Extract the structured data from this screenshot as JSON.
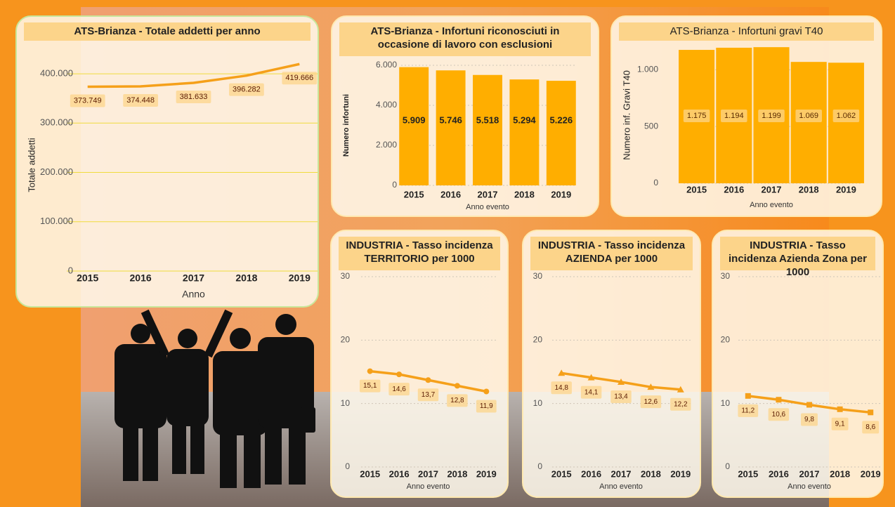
{
  "chart_data": [
    {
      "type": "line",
      "title": "ATS-Brianza - Totale addetti per anno",
      "y_label": "Totale addetti",
      "x_label": "Anno",
      "categories": [
        "2015",
        "2016",
        "2017",
        "2018",
        "2019"
      ],
      "values": [
        373749,
        374448,
        381633,
        396282,
        419666
      ],
      "value_labels": [
        "373.749",
        "374.448",
        "381.633",
        "396.282",
        "419.666"
      ],
      "color": "#f5a01a",
      "ylim": [
        0,
        430000
      ],
      "yticks": [
        0,
        {
          "value": 100000,
          "label": "100.000"
        },
        {
          "value": 200000,
          "label": "200.000"
        },
        {
          "value": 300000,
          "label": "300.000"
        },
        {
          "value": 400000,
          "label": "400.000"
        }
      ],
      "grid": true,
      "grid_color": "#f0dc3c"
    },
    {
      "type": "bar",
      "title": "ATS-Brianza - Infortuni riconosciuti in occasione di lavoro con esclusioni",
      "y_label": "Numero infortuni",
      "x_label": "Anno evento",
      "categories": [
        "2015",
        "2016",
        "2017",
        "2018",
        "2019"
      ],
      "values": [
        5909,
        5746,
        5518,
        5294,
        5226
      ],
      "value_labels": [
        "5.909",
        "5.746",
        "5.518",
        "5.294",
        "5.226"
      ],
      "color": "#ffae00",
      "ylim": [
        0,
        6000
      ],
      "yticks": [
        0,
        {
          "value": 2000,
          "label": "2.000"
        },
        {
          "value": 4000,
          "label": "4.000"
        },
        {
          "value": 6000,
          "label": "6.000"
        }
      ],
      "grid": true,
      "grid_color": "#cfc6b8"
    },
    {
      "type": "bar",
      "title": "ATS-Brianza - Infortuni gravi T40",
      "y_label": "Numero inf. Gravi T40",
      "x_label": "Anno evento",
      "categories": [
        "2015",
        "2016",
        "2017",
        "2018",
        "2019"
      ],
      "values": [
        1175,
        1194,
        1199,
        1069,
        1062
      ],
      "value_labels": [
        "1.175",
        "1.194",
        "1.199",
        "1.069",
        "1.062"
      ],
      "color": "#ffae00",
      "ylim": [
        0,
        1200
      ],
      "yticks": [
        0,
        500,
        {
          "value": 1000,
          "label": "1.000"
        }
      ],
      "grid": true,
      "grid_color": "#cfc6b8"
    },
    {
      "type": "line",
      "title": "INDUSTRIA - Tasso incidenza TERRITORIO per 1000",
      "x_label": "Anno evento",
      "categories": [
        "2015",
        "2016",
        "2017",
        "2018",
        "2019"
      ],
      "values": [
        15.1,
        14.6,
        13.7,
        12.8,
        11.9
      ],
      "value_labels": [
        "15,1",
        "14,6",
        "13,7",
        "12,8",
        "11,9"
      ],
      "color": "#f5a01a",
      "marker": "circle",
      "ylim": [
        0,
        30
      ],
      "yticks": [
        0,
        10,
        20,
        30
      ],
      "grid": true,
      "grid_color": "#cfc6b8"
    },
    {
      "type": "line",
      "title": "INDUSTRIA - Tasso incidenza AZIENDA per 1000",
      "x_label": "Anno evento",
      "categories": [
        "2015",
        "2016",
        "2017",
        "2018",
        "2019"
      ],
      "values": [
        14.8,
        14.1,
        13.4,
        12.6,
        12.2
      ],
      "value_labels": [
        "14,8",
        "14,1",
        "13,4",
        "12,6",
        "12,2"
      ],
      "color": "#f5a01a",
      "marker": "triangle",
      "ylim": [
        0,
        30
      ],
      "yticks": [
        0,
        10,
        20,
        30
      ],
      "grid": true,
      "grid_color": "#cfc6b8"
    },
    {
      "type": "line",
      "title": "INDUSTRIA - Tasso incidenza Azienda Zona per 1000",
      "x_label": "Anno evento",
      "categories": [
        "2015",
        "2016",
        "2017",
        "2018",
        "2019"
      ],
      "values": [
        11.2,
        10.6,
        9.8,
        9.1,
        8.6
      ],
      "value_labels": [
        "11,2",
        "10,6",
        "9,8",
        "9,1",
        "8,6"
      ],
      "color": "#f5a01a",
      "marker": "square",
      "ylim": [
        0,
        30
      ],
      "yticks": [
        0,
        10,
        20,
        30
      ],
      "grid": true,
      "grid_color": "#cfc6b8"
    }
  ]
}
